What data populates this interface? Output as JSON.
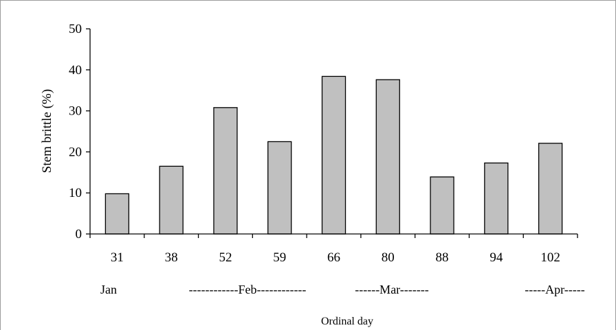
{
  "chart_data": {
    "type": "bar",
    "categories": [
      "31",
      "38",
      "52",
      "59",
      "66",
      "80",
      "88",
      "94",
      "102"
    ],
    "values": [
      9.8,
      16.5,
      30.8,
      22.5,
      38.4,
      37.6,
      13.9,
      17.3,
      22.1
    ],
    "xlabel": "Ordinal day",
    "ylabel": "Stem brittle (%)",
    "ylim": [
      0,
      50
    ],
    "yticks": [
      0,
      10,
      20,
      30,
      40,
      50
    ],
    "month_labels": [
      "Jan",
      "------------Feb------------",
      "------Mar-------",
      "-----Apr-----"
    ],
    "grid": false,
    "legend": "none",
    "bar_color": "#c0c0c0"
  }
}
